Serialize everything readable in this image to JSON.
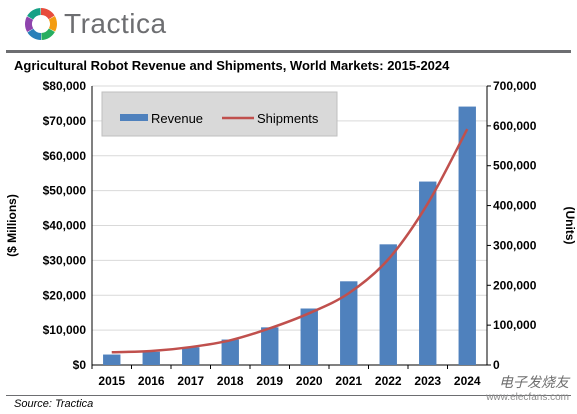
{
  "brand": {
    "name": "Tractica",
    "colors": [
      "#e74c3c",
      "#f39c12",
      "#27ae60",
      "#2980b9",
      "#8e44ad",
      "#16a085"
    ]
  },
  "chart_data": {
    "type": "bar",
    "title": "Agricultural Robot Revenue and Shipments, World Markets: 2015-2024",
    "categories": [
      "2015",
      "2016",
      "2017",
      "2018",
      "2019",
      "2020",
      "2021",
      "2022",
      "2023",
      "2024"
    ],
    "series": [
      {
        "name": "Revenue",
        "type": "bar",
        "axis": "left",
        "color": "#4f81bd",
        "values": [
          3000,
          3800,
          5100,
          7300,
          10800,
          16200,
          24000,
          34600,
          52600,
          74100
        ]
      },
      {
        "name": "Shipments",
        "type": "line",
        "axis": "right",
        "color": "#c0504d",
        "values": [
          32000,
          35000,
          45000,
          62000,
          92000,
          130000,
          180000,
          265000,
          405000,
          592000
        ]
      }
    ],
    "ylabel": "($ Millions)",
    "ylim": [
      0,
      80000
    ],
    "yticks": [
      "$0",
      "$10,000",
      "$20,000",
      "$30,000",
      "$40,000",
      "$50,000",
      "$60,000",
      "$70,000",
      "$80,000"
    ],
    "y2label": "(Units)",
    "y2lim": [
      0,
      700000
    ],
    "y2ticks": [
      "0",
      "100,000",
      "200,000",
      "300,000",
      "400,000",
      "500,000",
      "600,000",
      "700,000"
    ],
    "grid": true,
    "legend": "top-left"
  },
  "footer": {
    "source": "Source: Tractica"
  },
  "watermark": {
    "line1": "电子发烧友",
    "line2": "www.elecfans.com"
  }
}
